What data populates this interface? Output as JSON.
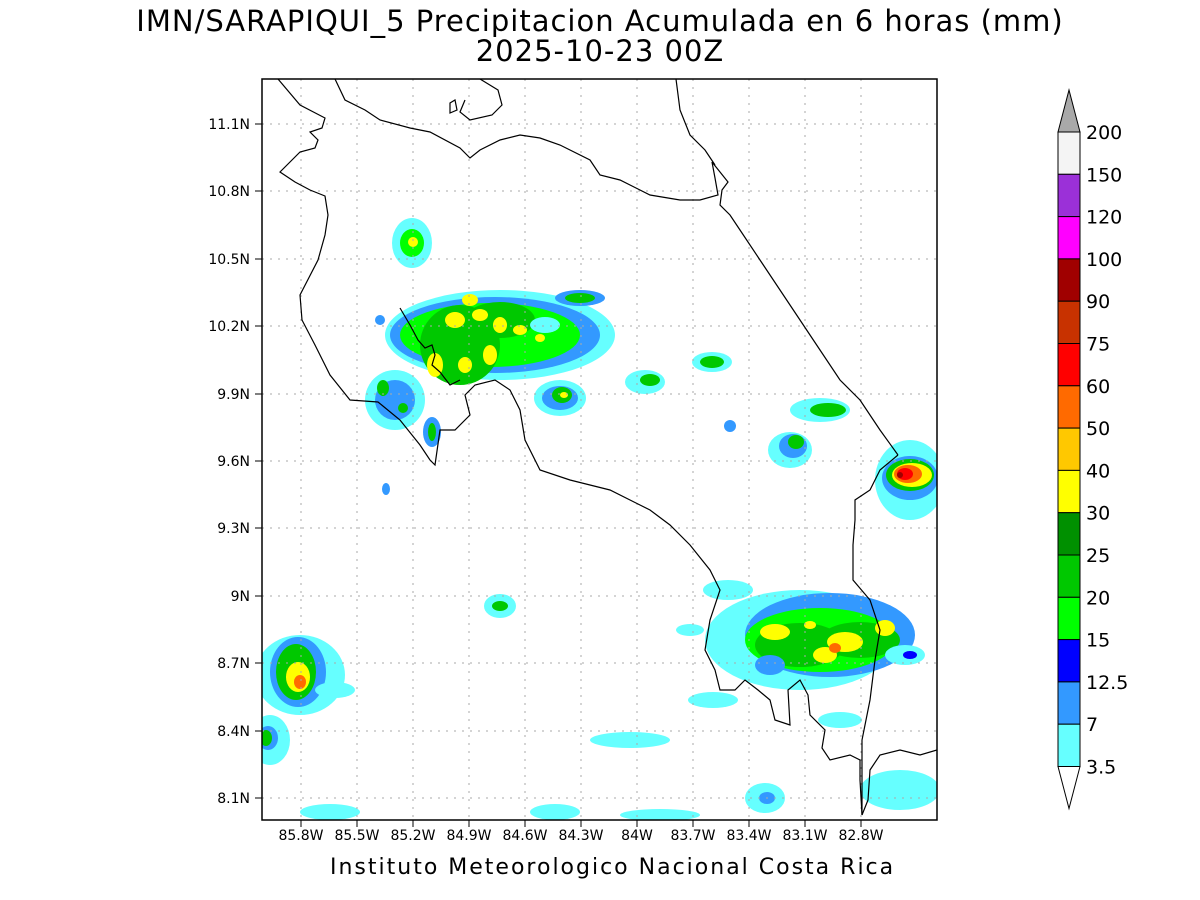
{
  "header": {
    "title": "IMN/SARAPIQUI_5 Precipitacion Acumulada en 6 horas (mm)",
    "datetime": "2025-10-23 00Z"
  },
  "footer": {
    "credit": "Instituto Meteorologico Nacional Costa Rica"
  },
  "axes": {
    "lat_labels": [
      "11.1N",
      "10.8N",
      "10.5N",
      "10.2N",
      "9.9N",
      "9.6N",
      "9.3N",
      "9N",
      "8.7N",
      "8.4N",
      "8.1N"
    ],
    "lon_labels": [
      "85.8W",
      "85.5W",
      "85.2W",
      "84.9W",
      "84.6W",
      "84.3W",
      "84W",
      "83.7W",
      "83.4W",
      "83.1W",
      "82.8W"
    ]
  },
  "colorbar": {
    "labels": [
      "200",
      "150",
      "120",
      "100",
      "90",
      "75",
      "60",
      "50",
      "40",
      "30",
      "25",
      "20",
      "15",
      "12.5",
      "7",
      "3.5"
    ],
    "colors": [
      "#a9a9a9",
      "#f4f4f4",
      "#9b30d8",
      "#ff00ff",
      "#a00000",
      "#c83200",
      "#ff0000",
      "#ff6a00",
      "#ffc800",
      "#ffff00",
      "#009000",
      "#00c800",
      "#00ff00",
      "#0000ff",
      "#3399ff",
      "#66ffff"
    ]
  }
}
